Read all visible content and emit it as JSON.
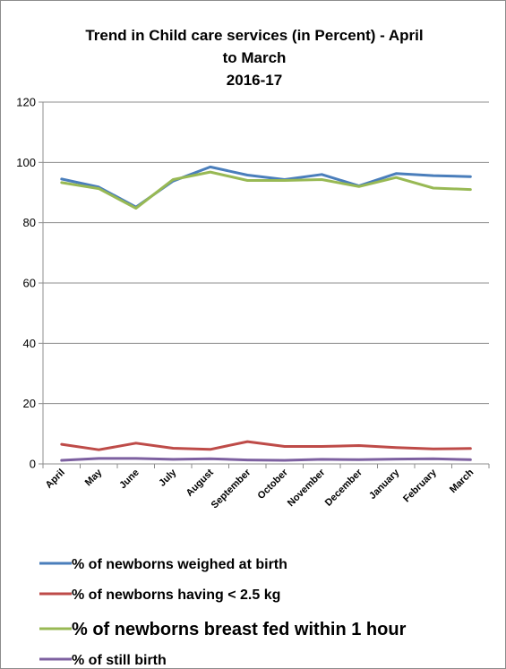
{
  "chart_data": {
    "type": "line",
    "title": "Trend in Child care services  (in Percent) - April to March 2016-17",
    "title_lines": [
      "Trend in Child care services  (in Percent) - April",
      "to March",
      "2016-17"
    ],
    "xlabel": "",
    "ylabel": "",
    "ylim": [
      0,
      120
    ],
    "yticks": [
      "0",
      "20",
      "40",
      "60",
      "80",
      "100",
      "120"
    ],
    "grid": true,
    "legend_position": "bottom",
    "categories": [
      "April",
      "May",
      "June",
      "July",
      "August",
      "September",
      "October",
      "November",
      "December",
      "January",
      "February",
      "March"
    ],
    "series": [
      {
        "name": "% of newborns weighed at birth",
        "color": "#4a7ebb",
        "values": [
          94.5,
          91.8,
          85.2,
          93.8,
          98.5,
          95.8,
          94.3,
          96.0,
          92.2,
          96.3,
          95.6,
          95.3
        ]
      },
      {
        "name": "% of newborns having < 2.5 kg",
        "color": "#be4b48",
        "values": [
          6.5,
          4.7,
          6.9,
          5.2,
          4.8,
          7.4,
          5.8,
          5.8,
          6.1,
          5.4,
          5.0,
          5.1
        ]
      },
      {
        "name": "% of newborns breast fed within 1 hour",
        "color": "#98b954",
        "values": [
          93.3,
          91.3,
          84.8,
          94.3,
          96.8,
          94.0,
          94.0,
          94.3,
          92.0,
          95.0,
          91.5,
          91.0
        ]
      },
      {
        "name": "% of still birth",
        "color": "#7d60a0",
        "values": [
          1.2,
          1.8,
          1.8,
          1.5,
          1.7,
          1.3,
          1.2,
          1.5,
          1.4,
          1.6,
          1.7,
          1.4
        ]
      }
    ]
  }
}
